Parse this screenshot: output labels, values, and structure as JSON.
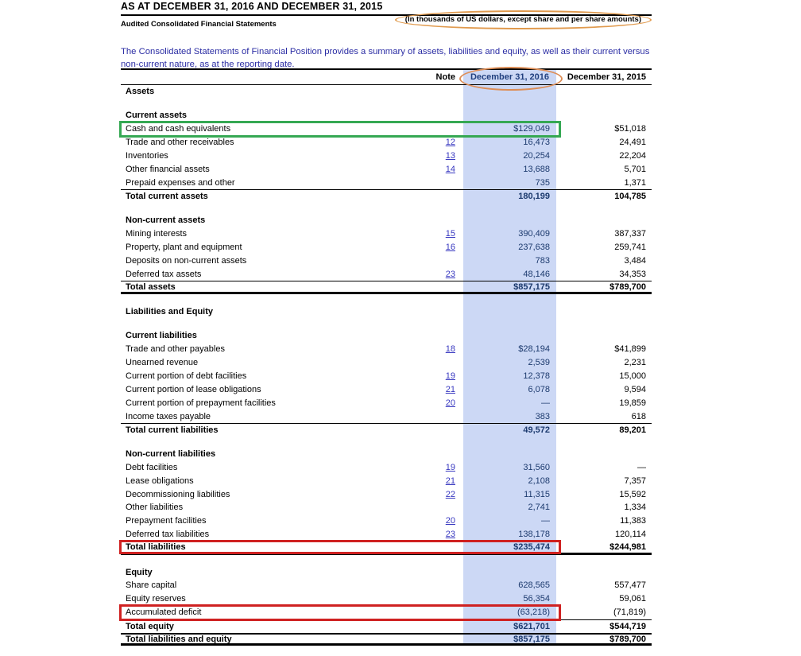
{
  "header": {
    "title": "AS AT DECEMBER 31, 2016 AND DECEMBER 31, 2015",
    "subtitle": "Audited Consolidated Financial Statements",
    "units_note": "(In thousands of US dollars, except share and per share amounts)",
    "description": "The Consolidated Statements of Financial Position provides a summary of assets, liabilities and equity, as well as their current versus non-current nature, as at the reporting date."
  },
  "colors": {
    "highlight_column": "#ccd8f5",
    "values_2016_text": "#1c3a6e",
    "note_link": "#3838c0",
    "description_text": "#2b2da4",
    "annotation_green": "#35a853",
    "annotation_red": "#cf2121",
    "annotation_orange": "#e09a4e"
  },
  "table": {
    "columns": {
      "note": "Note",
      "y2016": "December 31, 2016",
      "y2015": "December 31, 2015"
    },
    "rows": [
      {
        "label": "Assets"
      },
      {},
      {
        "label": "Current assets"
      },
      {
        "label": "Cash and cash equivalents",
        "v2016": "$129,049",
        "v2015": "$51,018",
        "annotation": "green-box"
      },
      {
        "label": "Trade and other receivables",
        "note": "12",
        "v2016": "16,473",
        "v2015": "24,491"
      },
      {
        "label": "Inventories",
        "note": "13",
        "v2016": "20,254",
        "v2015": "22,204"
      },
      {
        "label": "Other financial assets",
        "note": "14",
        "v2016": "13,688",
        "v2015": "5,701"
      },
      {
        "label": "Prepaid expenses and other",
        "v2016": "735",
        "v2015": "1,371"
      },
      {
        "label": "Total current assets",
        "v2016": "180,199",
        "v2015": "104,785"
      },
      {},
      {
        "label": "Non-current assets"
      },
      {
        "label": "Mining interests",
        "note": "15",
        "v2016": "390,409",
        "v2015": "387,337"
      },
      {
        "label": "Property, plant and equipment",
        "note": "16",
        "v2016": "237,638",
        "v2015": "259,741"
      },
      {
        "label": "Deposits on non-current assets",
        "v2016": "783",
        "v2015": "3,484"
      },
      {
        "label": "Deferred tax assets",
        "note": "23",
        "v2016": "48,146",
        "v2015": "34,353"
      },
      {
        "label": "Total assets",
        "v2016": "$857,175",
        "v2015": "$789,700"
      },
      {},
      {
        "label": "Liabilities and Equity"
      },
      {},
      {
        "label": "Current liabilities"
      },
      {
        "label": "Trade and other payables",
        "note": "18",
        "v2016": "$28,194",
        "v2015": "$41,899"
      },
      {
        "label": "Unearned revenue",
        "v2016": "2,539",
        "v2015": "2,231"
      },
      {
        "label": "Current portion of debt facilities",
        "note": "19",
        "v2016": "12,378",
        "v2015": "15,000"
      },
      {
        "label": "Current portion of lease obligations",
        "note": "21",
        "v2016": "6,078",
        "v2015": "9,594"
      },
      {
        "label": "Current portion of prepayment facilities",
        "note": "20",
        "v2016": "—",
        "v2015": "19,859"
      },
      {
        "label": "Income taxes payable",
        "v2016": "383",
        "v2015": "618"
      },
      {
        "label": "Total current liabilities",
        "v2016": "49,572",
        "v2015": "89,201"
      },
      {},
      {
        "label": "Non-current liabilities"
      },
      {
        "label": "Debt facilities",
        "note": "19",
        "v2016": "31,560",
        "v2015": "—"
      },
      {
        "label": "Lease obligations",
        "note": "21",
        "v2016": "2,108",
        "v2015": "7,357"
      },
      {
        "label": "Decommissioning liabilities",
        "note": "22",
        "v2016": "11,315",
        "v2015": "15,592"
      },
      {
        "label": "Other liabilities",
        "v2016": "2,741",
        "v2015": "1,334"
      },
      {
        "label": "Prepayment facilities",
        "note": "20",
        "v2016": "—",
        "v2015": "11,383"
      },
      {
        "label": "Deferred tax liabilities",
        "note": "23",
        "v2016": "138,178",
        "v2015": "120,114"
      },
      {
        "label": "Total liabilities",
        "v2016": "$235,474",
        "v2015": "$244,981",
        "annotation": "red-box"
      },
      {},
      {
        "label": "Equity"
      },
      {
        "label": "Share capital",
        "v2016": "628,565",
        "v2015": "557,477"
      },
      {
        "label": "Equity reserves",
        "v2016": "56,354",
        "v2015": "59,061"
      },
      {
        "label": "Accumulated deficit",
        "v2016": "(63,218)",
        "v2015": "(71,819)",
        "annotation": "red-box"
      },
      {
        "label": "Total equity",
        "v2016": "$621,701",
        "v2015": "$544,719"
      },
      {
        "label": "Total liabilities and equity",
        "v2016": "$857,175",
        "v2015": "$789,700"
      }
    ]
  }
}
